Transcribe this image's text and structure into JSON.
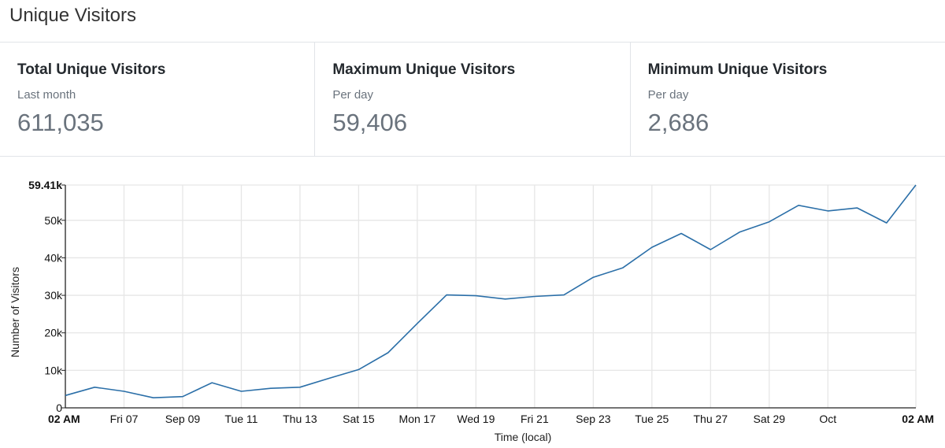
{
  "header": {
    "title": "Unique Visitors"
  },
  "stats": [
    {
      "title": "Total Unique Visitors",
      "subtitle": "Last month",
      "value": "611,035"
    },
    {
      "title": "Maximum Unique Visitors",
      "subtitle": "Per day",
      "value": "59,406"
    },
    {
      "title": "Minimum Unique Visitors",
      "subtitle": "Per day",
      "value": "2,686"
    }
  ],
  "chart_data": {
    "type": "line",
    "title": "",
    "xlabel": "Time (local)",
    "ylabel": "Number of Visitors",
    "ylim": [
      0,
      59406
    ],
    "y_ticks": [
      {
        "value": 0,
        "label": "0"
      },
      {
        "value": 10000,
        "label": "10k"
      },
      {
        "value": 20000,
        "label": "20k"
      },
      {
        "value": 30000,
        "label": "30k"
      },
      {
        "value": 40000,
        "label": "40k"
      },
      {
        "value": 50000,
        "label": "50k"
      },
      {
        "value": 59406,
        "label": "59.41k"
      }
    ],
    "x_range": [
      0,
      29
    ],
    "x_ticks": [
      {
        "value": 0,
        "label": "02 AM",
        "bold": true
      },
      {
        "value": 2,
        "label": "Fri 07"
      },
      {
        "value": 4,
        "label": "Sep 09"
      },
      {
        "value": 6,
        "label": "Tue 11"
      },
      {
        "value": 8,
        "label": "Thu 13"
      },
      {
        "value": 10,
        "label": "Sat 15"
      },
      {
        "value": 12,
        "label": "Mon 17"
      },
      {
        "value": 14,
        "label": "Wed 19"
      },
      {
        "value": 16,
        "label": "Fri 21"
      },
      {
        "value": 18,
        "label": "Sep 23"
      },
      {
        "value": 20,
        "label": "Tue 25"
      },
      {
        "value": 22,
        "label": "Thu 27"
      },
      {
        "value": 24,
        "label": "Sat 29"
      },
      {
        "value": 26,
        "label": "Oct"
      },
      {
        "value": 29,
        "label": "02 AM",
        "bold": true
      }
    ],
    "series": [
      {
        "name": "Unique Visitors",
        "color": "#2b6fa8",
        "x": [
          0,
          1,
          2,
          3,
          4,
          5,
          6,
          7,
          8,
          9,
          10,
          11,
          12,
          13,
          14,
          15,
          16,
          17,
          18,
          19,
          20,
          21,
          22,
          23,
          24,
          25,
          26,
          27,
          28,
          29
        ],
        "values": [
          3300,
          5500,
          4400,
          2686,
          3000,
          6700,
          4400,
          5200,
          5500,
          7900,
          10200,
          14700,
          22500,
          30100,
          29900,
          29000,
          29700,
          30100,
          34800,
          37300,
          42800,
          46500,
          42200,
          46900,
          49600,
          54000,
          52500,
          53300,
          49300,
          59406
        ]
      }
    ],
    "grid": true
  }
}
